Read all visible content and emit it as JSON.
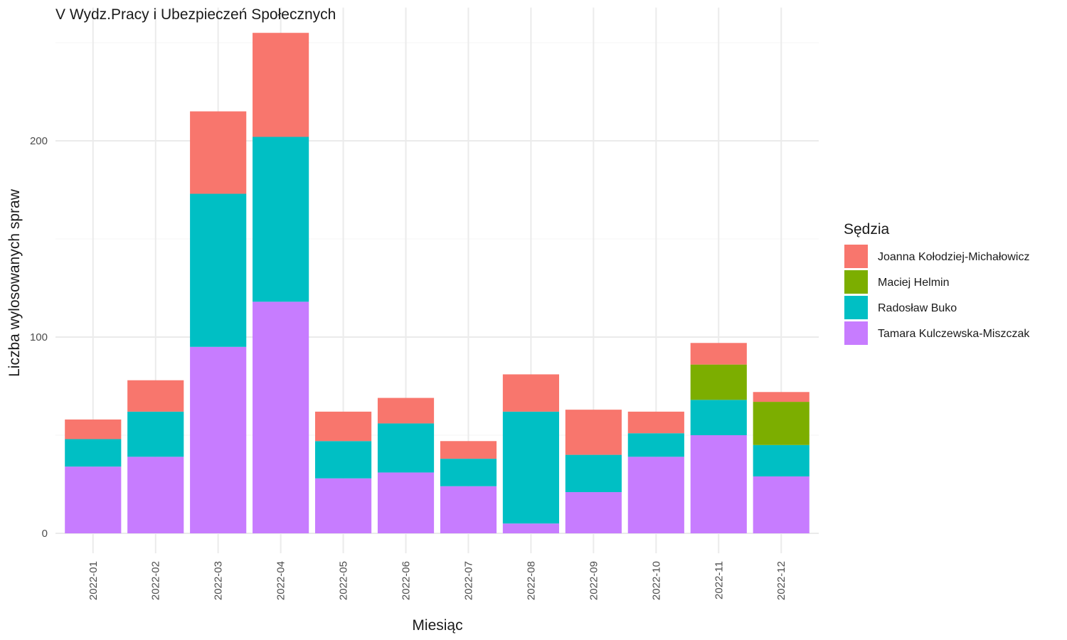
{
  "chart_data": {
    "type": "bar",
    "stacked": true,
    "title": "V Wydz.Pracy i Ubezpieczeń Społecznych",
    "xlabel": "Miesiąc",
    "ylabel": "Liczba wylosowanych spraw",
    "ylim": [
      0,
      265
    ],
    "yticks": [
      0,
      100,
      200
    ],
    "grid": true,
    "legend": {
      "title": "Sędzia",
      "position": "right"
    },
    "categories": [
      "2022-01",
      "2022-02",
      "2022-03",
      "2022-04",
      "2022-05",
      "2022-06",
      "2022-07",
      "2022-08",
      "2022-09",
      "2022-10",
      "2022-11",
      "2022-12"
    ],
    "series": [
      {
        "name": "Tamara Kulczewska-Miszczak",
        "color": "#C77CFF",
        "values": [
          34,
          39,
          95,
          118,
          28,
          31,
          24,
          5,
          21,
          39,
          50,
          29
        ]
      },
      {
        "name": "Radosław Buko",
        "color": "#00BFC4",
        "values": [
          14,
          23,
          78,
          84,
          19,
          25,
          14,
          57,
          19,
          12,
          18,
          16
        ]
      },
      {
        "name": "Maciej Helmin",
        "color": "#7CAE00",
        "values": [
          0,
          0,
          0,
          0,
          0,
          0,
          0,
          0,
          0,
          0,
          18,
          22
        ]
      },
      {
        "name": "Joanna Kołodziej-Michałowicz",
        "color": "#F8766D",
        "values": [
          10,
          16,
          42,
          53,
          15,
          13,
          9,
          19,
          23,
          11,
          11,
          5
        ]
      }
    ],
    "legend_order": [
      "Joanna Kołodziej-Michałowicz",
      "Maciej Helmin",
      "Radosław Buko",
      "Tamara Kulczewska-Miszczak"
    ]
  }
}
